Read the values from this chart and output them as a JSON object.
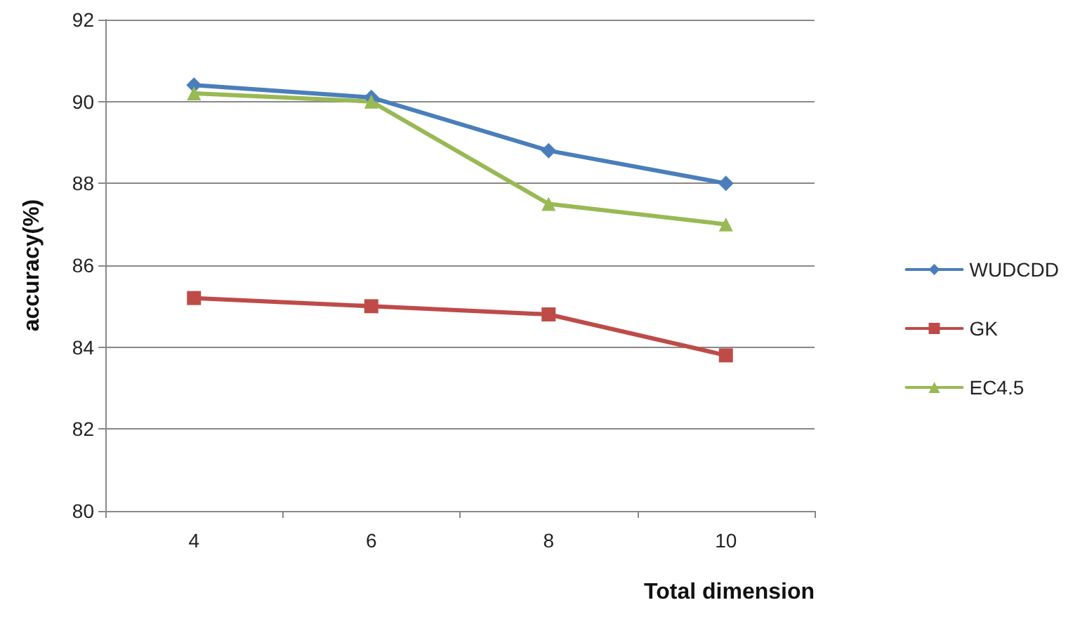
{
  "chart_data": {
    "type": "line",
    "xlabel": "Total dimension",
    "ylabel": "accuracy(%)",
    "categories": [
      "4",
      "6",
      "8",
      "10"
    ],
    "series": [
      {
        "name": "WUDCDD",
        "color": "#4a7ebb",
        "marker": "diamond",
        "values": [
          90.4,
          90.1,
          88.8,
          88.0
        ]
      },
      {
        "name": "GK",
        "color": "#be4b48",
        "marker": "square",
        "values": [
          85.2,
          85.0,
          84.8,
          83.8
        ]
      },
      {
        "name": "EC4.5",
        "color": "#98b954",
        "marker": "triangle",
        "values": [
          90.2,
          90.0,
          87.5,
          87.0
        ]
      }
    ],
    "ylim": [
      80,
      92
    ],
    "yticks": [
      80,
      82,
      84,
      86,
      88,
      90,
      92
    ],
    "grid": "y",
    "legend": "right",
    "line_style": "solid"
  }
}
